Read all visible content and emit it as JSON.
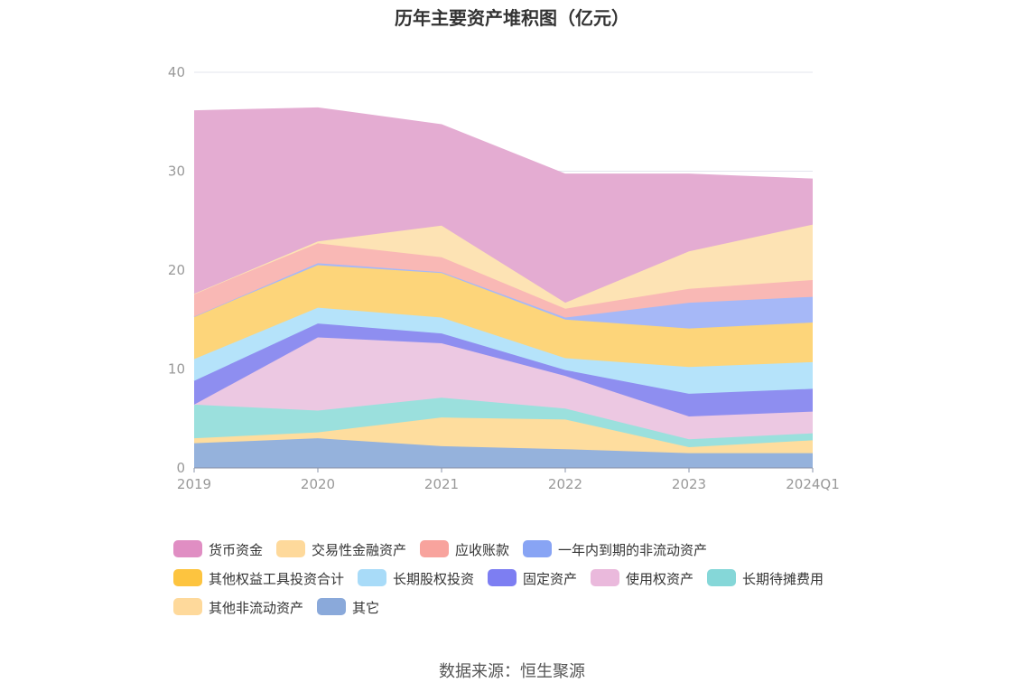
{
  "chart_data": {
    "type": "area",
    "stacked": true,
    "title": "历年主要资产堆积图（亿元）",
    "categories": [
      "2019",
      "2020",
      "2021",
      "2022",
      "2023",
      "2024Q1"
    ],
    "ylim": [
      0,
      40
    ],
    "yticks": [
      0,
      10,
      20,
      30,
      40
    ],
    "grid": true,
    "legend_position": "bottom",
    "series": [
      {
        "name": "其它",
        "color": "#95b2dc",
        "values": [
          2.5,
          3.0,
          2.2,
          1.9,
          1.5,
          1.5
        ]
      },
      {
        "name": "其他非流动资产",
        "color": "#fedd9e",
        "values": [
          0.5,
          0.6,
          2.9,
          3.0,
          0.6,
          1.3
        ]
      },
      {
        "name": "长期待摊费用",
        "color": "#9be0dd",
        "values": [
          3.4,
          2.2,
          2.0,
          1.1,
          0.8,
          0.7
        ]
      },
      {
        "name": "使用权资产",
        "color": "#ecc8e2",
        "values": [
          0.0,
          7.4,
          5.5,
          3.3,
          2.3,
          2.2
        ]
      },
      {
        "name": "固定资产",
        "color": "#8e8ef0",
        "values": [
          2.4,
          1.4,
          1.0,
          0.6,
          2.3,
          2.3
        ]
      },
      {
        "name": "长期股权投资",
        "color": "#b5e3fa",
        "values": [
          2.2,
          1.6,
          1.6,
          1.2,
          2.7,
          2.7
        ]
      },
      {
        "name": "其他权益工具投资合计",
        "color": "#fdd57a",
        "values": [
          4.3,
          4.3,
          4.5,
          3.9,
          3.9,
          4.0
        ]
      },
      {
        "name": "一年内到期的非流动资产",
        "color": "#a6b8f7",
        "values": [
          0.0,
          0.2,
          0.1,
          0.2,
          2.6,
          2.6
        ]
      },
      {
        "name": "应收账款",
        "color": "#f9b8b5",
        "values": [
          2.3,
          2.0,
          1.5,
          0.9,
          1.4,
          1.7
        ]
      },
      {
        "name": "交易性金融资产",
        "color": "#fde3b4",
        "values": [
          0.0,
          0.2,
          3.2,
          0.6,
          3.8,
          5.6
        ]
      },
      {
        "name": "货币资金",
        "color": "#e4acd2",
        "values": [
          18.5,
          13.5,
          10.2,
          13.0,
          7.8,
          4.6
        ]
      }
    ]
  },
  "legend": {
    "items": [
      {
        "label": "货币资金",
        "color": "#e08ec3"
      },
      {
        "label": "交易性金融资产",
        "color": "#fed99b"
      },
      {
        "label": "应收账款",
        "color": "#f8a39d"
      },
      {
        "label": "一年内到期的非流动资产",
        "color": "#88a4f4"
      },
      {
        "label": "其他权益工具投资合计",
        "color": "#fdc43f"
      },
      {
        "label": "长期股权投资",
        "color": "#a8dbf8"
      },
      {
        "label": "固定资产",
        "color": "#7d7ef2"
      },
      {
        "label": "使用权资产",
        "color": "#eab9dc"
      },
      {
        "label": "长期待摊费用",
        "color": "#85d7d8"
      },
      {
        "label": "其他非流动资产",
        "color": "#fed99b"
      },
      {
        "label": "其它",
        "color": "#8aa9da"
      }
    ]
  },
  "footer": {
    "source": "数据来源：恒生聚源"
  }
}
